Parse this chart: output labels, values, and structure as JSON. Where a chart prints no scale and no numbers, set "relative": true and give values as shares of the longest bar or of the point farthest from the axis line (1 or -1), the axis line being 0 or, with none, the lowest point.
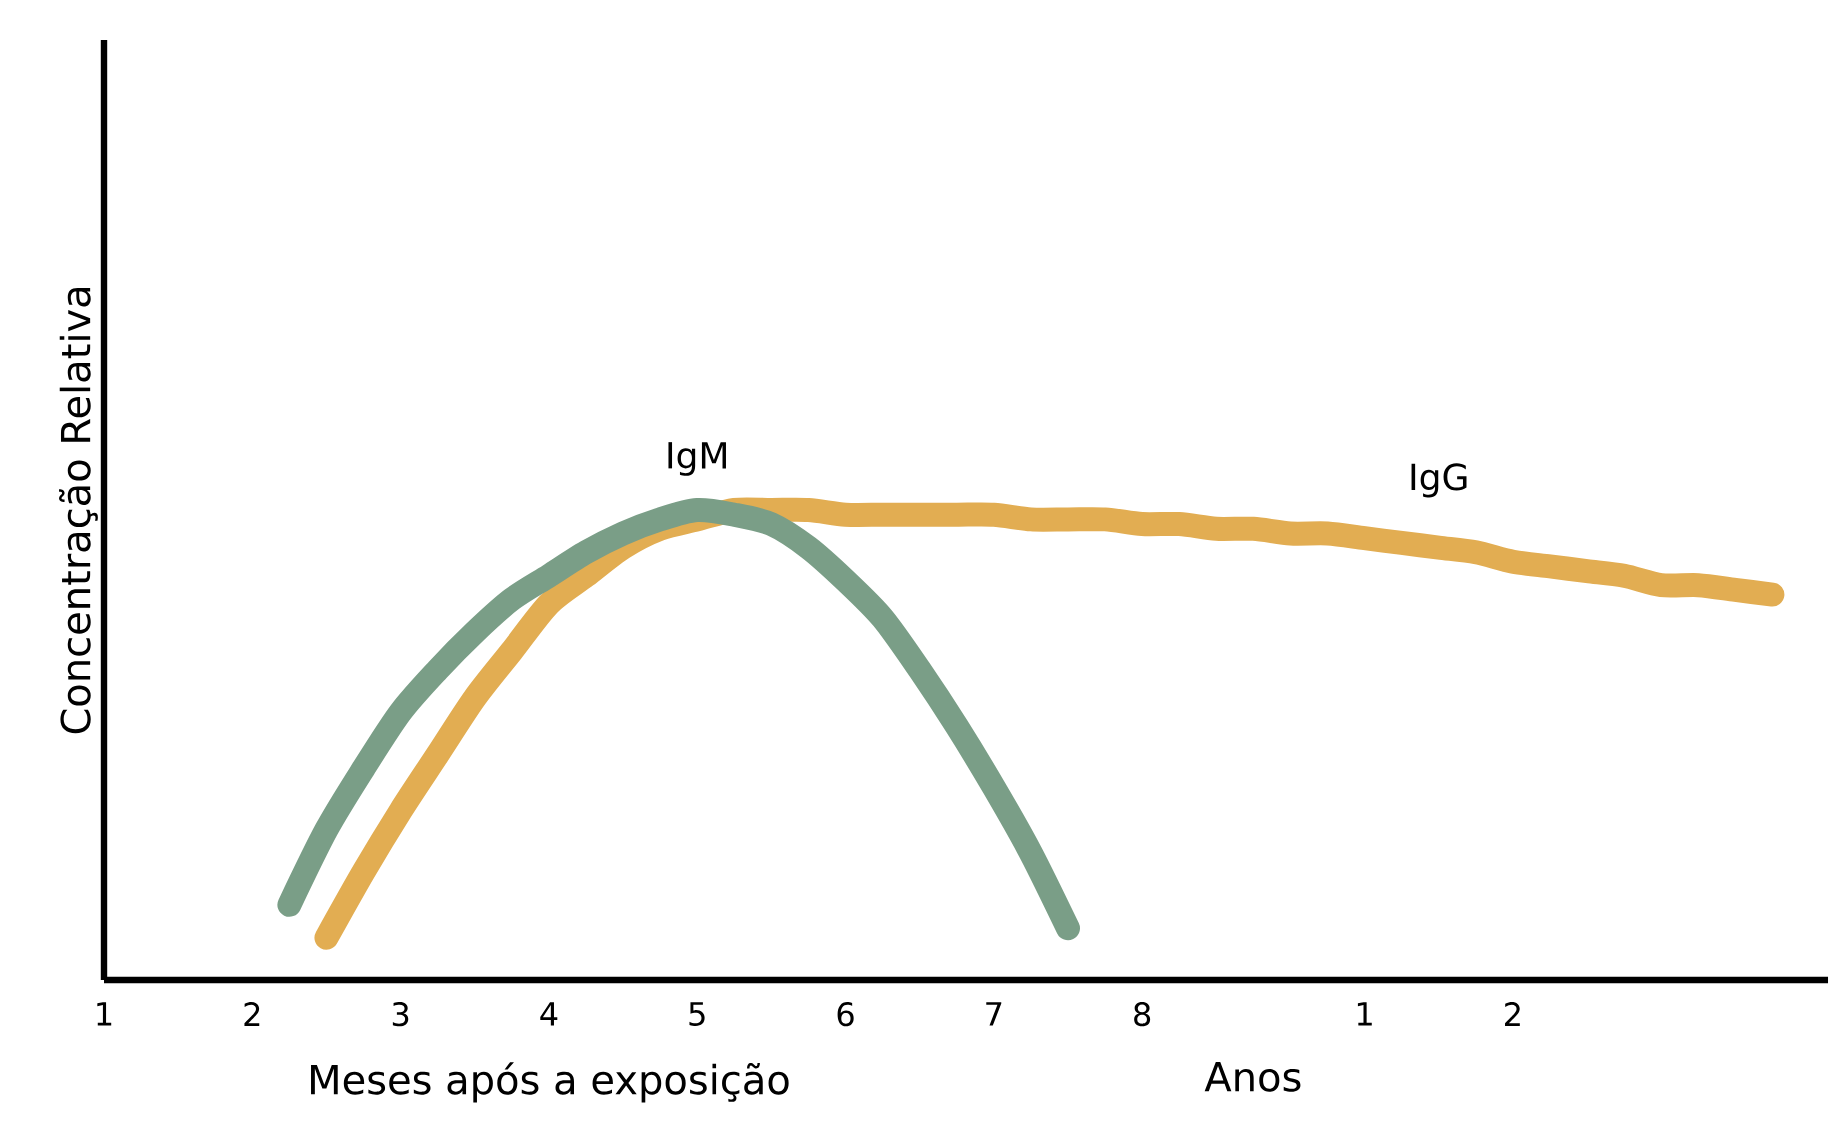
{
  "chart_data": {
    "type": "line",
    "relative": true,
    "ylabel": "Concentração Relativa",
    "xlabel": "Meses após a exposição",
    "annotations": [
      "Anos"
    ],
    "categories": [
      "1",
      null,
      null,
      null,
      "2",
      null,
      null,
      null,
      "3",
      null,
      null,
      null,
      "4",
      null,
      null,
      null,
      "5",
      null,
      null,
      null,
      "6",
      null,
      null,
      null,
      "7",
      null,
      null,
      null,
      "8",
      null,
      null,
      null,
      null,
      null,
      "1",
      null,
      null,
      null,
      "2",
      null,
      null,
      null,
      null,
      null,
      null,
      null,
      null
    ],
    "legend": false,
    "grid": false,
    "marker": "none",
    "line_style": "solid",
    "series": [
      {
        "name": "IgG",
        "color": "#e2ad52",
        "values": [
          null,
          null,
          null,
          null,
          null,
          null,
          0.09,
          0.23,
          0.36,
          0.48,
          0.6,
          0.7,
          0.8,
          0.86,
          0.92,
          0.96,
          0.98,
          1.0,
          1.0,
          1.0,
          0.99,
          0.99,
          0.99,
          0.99,
          0.99,
          0.98,
          0.98,
          0.98,
          0.97,
          0.97,
          0.96,
          0.96,
          0.95,
          0.95,
          0.94,
          0.93,
          0.92,
          0.91,
          0.89,
          0.88,
          0.87,
          0.86,
          0.84,
          0.84,
          0.83,
          0.82,
          null
        ]
      },
      {
        "name": "IgM",
        "color": "#7a9e87",
        "values": [
          null,
          null,
          null,
          null,
          null,
          0.16,
          0.32,
          0.45,
          0.57,
          0.66,
          0.74,
          0.81,
          0.86,
          0.91,
          0.95,
          0.98,
          1.0,
          0.99,
          0.97,
          0.92,
          0.85,
          0.77,
          0.66,
          0.54,
          0.41,
          0.27,
          0.11,
          null,
          null,
          null,
          null,
          null,
          null,
          null,
          null,
          null,
          null,
          null,
          null,
          null,
          null,
          null,
          null,
          null,
          null,
          null,
          null
        ]
      }
    ]
  }
}
